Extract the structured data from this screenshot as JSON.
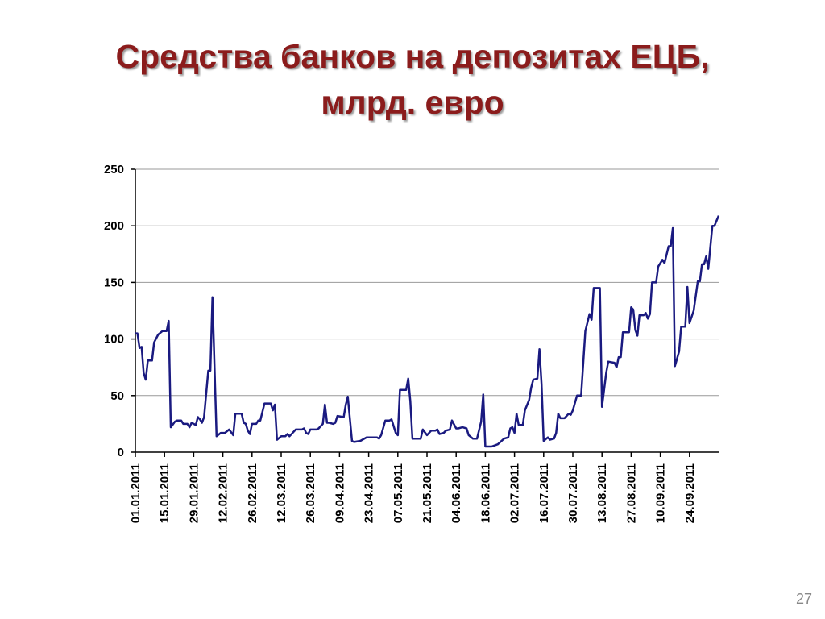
{
  "chart_data": {
    "type": "line",
    "title": "Средства банков на депозитах ЕЦБ, млрд. евро",
    "x": [
      "01.01.2011",
      "02.01.2011",
      "03.01.2011",
      "04.01.2011",
      "05.01.2011",
      "06.01.2011",
      "07.01.2011",
      "09.01.2011",
      "10.01.2011",
      "12.01.2011",
      "14.01.2011",
      "16.01.2011",
      "17.01.2011",
      "18.01.2011",
      "20.01.2011",
      "21.01.2011",
      "23.01.2011",
      "24.01.2011",
      "26.01.2011",
      "27.01.2011",
      "28.01.2011",
      "30.01.2011",
      "31.01.2011",
      "01.02.2011",
      "02.02.2011",
      "03.02.2011",
      "05.02.2011",
      "06.02.2011",
      "07.02.2011",
      "09.02.2011",
      "11.02.2011",
      "13.02.2011",
      "15.02.2011",
      "17.02.2011",
      "18.02.2011",
      "21.02.2011",
      "22.02.2011",
      "23.02.2011",
      "24.02.2011",
      "25.02.2011",
      "26.02.2011",
      "28.02.2011",
      "01.03.2011",
      "02.03.2011",
      "04.03.2011",
      "07.03.2011",
      "08.03.2011",
      "09.03.2011",
      "10.03.2011",
      "12.03.2011",
      "14.03.2011",
      "15.03.2011",
      "16.03.2011",
      "18.03.2011",
      "19.03.2011",
      "22.03.2011",
      "23.03.2011",
      "24.03.2011",
      "25.03.2011",
      "26.03.2011",
      "29.03.2011",
      "30.03.2011",
      "01.04.2011",
      "02.04.2011",
      "03.04.2011",
      "04.04.2011",
      "06.04.2011",
      "07.04.2011",
      "08.04.2011",
      "11.04.2011",
      "12.04.2011",
      "13.04.2011",
      "15.04.2011",
      "16.04.2011",
      "19.04.2011",
      "22.04.2011",
      "27.04.2011",
      "28.04.2011",
      "29.04.2011",
      "01.05.2011",
      "03.05.2011",
      "04.05.2011",
      "06.05.2011",
      "07.05.2011",
      "08.05.2011",
      "11.05.2011",
      "12.05.2011",
      "13.05.2011",
      "14.05.2011",
      "18.05.2011",
      "19.05.2011",
      "21.05.2011",
      "23.05.2011",
      "25.05.2011",
      "26.05.2011",
      "27.05.2011",
      "29.05.2011",
      "30.05.2011",
      "01.06.2011",
      "02.06.2011",
      "04.06.2011",
      "05.06.2011",
      "07.06.2011",
      "09.06.2011",
      "10.06.2011",
      "12.06.2011",
      "14.06.2011",
      "16.06.2011",
      "17.06.2011",
      "18.06.2011",
      "21.06.2011",
      "24.06.2011",
      "27.06.2011",
      "29.06.2011",
      "30.06.2011",
      "01.07.2011",
      "02.07.2011",
      "03.07.2011",
      "04.07.2011",
      "06.07.2011",
      "07.07.2011",
      "09.07.2011",
      "10.07.2011",
      "11.07.2011",
      "13.07.2011",
      "14.07.2011",
      "15.07.2011",
      "16.07.2011",
      "18.07.2011",
      "19.07.2011",
      "21.07.2011",
      "22.07.2011",
      "23.07.2011",
      "24.07.2011",
      "26.07.2011",
      "28.07.2011",
      "29.07.2011",
      "30.07.2011",
      "01.08.2011",
      "03.08.2011",
      "05.08.2011",
      "07.08.2011",
      "08.08.2011",
      "09.08.2011",
      "12.08.2011",
      "13.08.2011",
      "15.08.2011",
      "16.08.2011",
      "19.08.2011",
      "20.08.2011",
      "21.08.2011",
      "22.08.2011",
      "23.08.2011",
      "26.08.2011",
      "27.08.2011",
      "28.08.2011",
      "29.08.2011",
      "30.08.2011",
      "31.08.2011",
      "02.09.2011",
      "03.09.2011",
      "04.09.2011",
      "05.09.2011",
      "06.09.2011",
      "08.09.2011",
      "09.09.2011",
      "11.09.2011",
      "12.09.2011",
      "14.09.2011",
      "15.09.2011",
      "16.09.2011",
      "17.09.2011",
      "19.09.2011",
      "20.09.2011",
      "22.09.2011",
      "23.09.2011",
      "24.09.2011",
      "26.09.2011",
      "28.09.2011",
      "29.09.2011",
      "30.09.2011",
      "01.10.2011",
      "02.10.2011",
      "03.10.2011",
      "05.10.2011",
      "06.10.2011",
      "08.10.2011"
    ],
    "series": [
      {
        "color": "#1a1a80",
        "values": [
          105,
          105,
          92,
          93,
          70,
          64,
          81,
          81,
          97,
          104,
          107,
          107,
          116,
          22,
          27,
          28,
          28,
          25,
          25,
          22,
          26,
          24,
          31,
          29,
          26,
          31,
          72,
          72,
          137,
          14,
          17,
          17,
          20,
          15,
          34,
          34,
          26,
          25,
          19,
          16,
          25,
          25,
          28,
          28,
          43,
          43,
          37,
          42,
          11,
          14,
          14,
          16,
          14,
          18,
          20,
          20,
          21,
          17,
          16,
          20,
          20,
          21,
          25,
          42,
          26,
          26,
          25,
          26,
          32,
          31,
          42,
          49,
          10,
          9,
          10,
          13,
          13,
          12,
          15,
          28,
          28,
          29,
          17,
          15,
          55,
          55,
          65,
          45,
          12,
          12,
          20,
          15,
          19,
          19,
          20,
          16,
          17,
          19,
          20,
          28,
          21,
          21,
          22,
          21,
          15,
          12,
          12,
          27,
          51,
          5,
          5,
          7,
          12,
          13,
          21,
          22,
          17,
          34,
          24,
          24,
          37,
          46,
          57,
          64,
          65,
          91,
          60,
          10,
          13,
          11,
          12,
          17,
          34,
          30,
          30,
          34,
          33,
          37,
          50,
          50,
          107,
          122,
          117,
          145,
          145,
          40,
          70,
          80,
          79,
          75,
          84,
          84,
          106,
          106,
          128,
          126,
          108,
          103,
          121,
          121,
          123,
          118,
          122,
          150,
          150,
          164,
          170,
          167,
          182,
          182,
          198,
          76,
          89,
          111,
          111,
          146,
          114,
          125,
          151,
          151,
          166,
          166,
          173,
          162,
          200,
          200,
          209
        ]
      }
    ],
    "xlim": [
      "01.01.2011",
      "08.10.2011"
    ],
    "xticks": [
      "01.01.2011",
      "15.01.2011",
      "29.01.2011",
      "12.02.2011",
      "26.02.2011",
      "12.03.2011",
      "26.03.2011",
      "09.04.2011",
      "23.04.2011",
      "07.05.2011",
      "21.05.2011",
      "04.06.2011",
      "18.06.2011",
      "02.07.2011",
      "16.07.2011",
      "30.07.2011",
      "13.08.2011",
      "27.08.2011",
      "10.09.2011",
      "24.09.2011"
    ],
    "ylim": [
      0,
      250
    ],
    "yticks": [
      0,
      50,
      100,
      150,
      200,
      250
    ],
    "grid": true
  },
  "page_number": "27"
}
